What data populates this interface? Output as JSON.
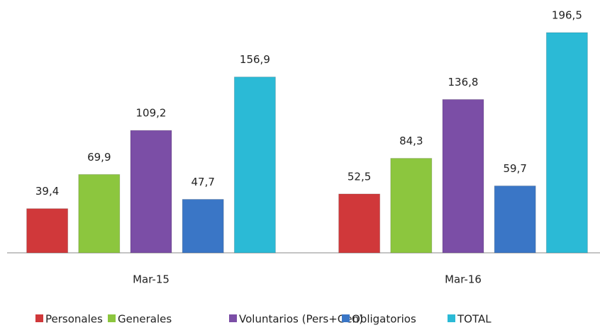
{
  "chart_data": {
    "type": "bar",
    "categories": [
      "Mar-15",
      "Mar-16"
    ],
    "series": [
      {
        "name": "Personales",
        "color": "#d0383a",
        "values": [
          39.4,
          52.5
        ],
        "value_labels": [
          "39,4",
          "52,5"
        ]
      },
      {
        "name": "Generales",
        "color": "#8cc63e",
        "values": [
          69.9,
          84.3
        ],
        "value_labels": [
          "69,9",
          "84,3"
        ]
      },
      {
        "name": "Voluntarios (Pers+Gen)",
        "color": "#7b4ea6",
        "values": [
          109.2,
          136.8
        ],
        "value_labels": [
          "109,2",
          "136,8"
        ]
      },
      {
        "name": "Obligatorios",
        "color": "#3a76c6",
        "values": [
          47.7,
          59.7
        ],
        "value_labels": [
          "47,7",
          "59,7"
        ]
      },
      {
        "name": "TOTAL",
        "color": "#2bbad6",
        "values": [
          156.9,
          196.5
        ],
        "value_labels": [
          "156,9",
          "196,5"
        ]
      }
    ],
    "legend": "bottom"
  }
}
